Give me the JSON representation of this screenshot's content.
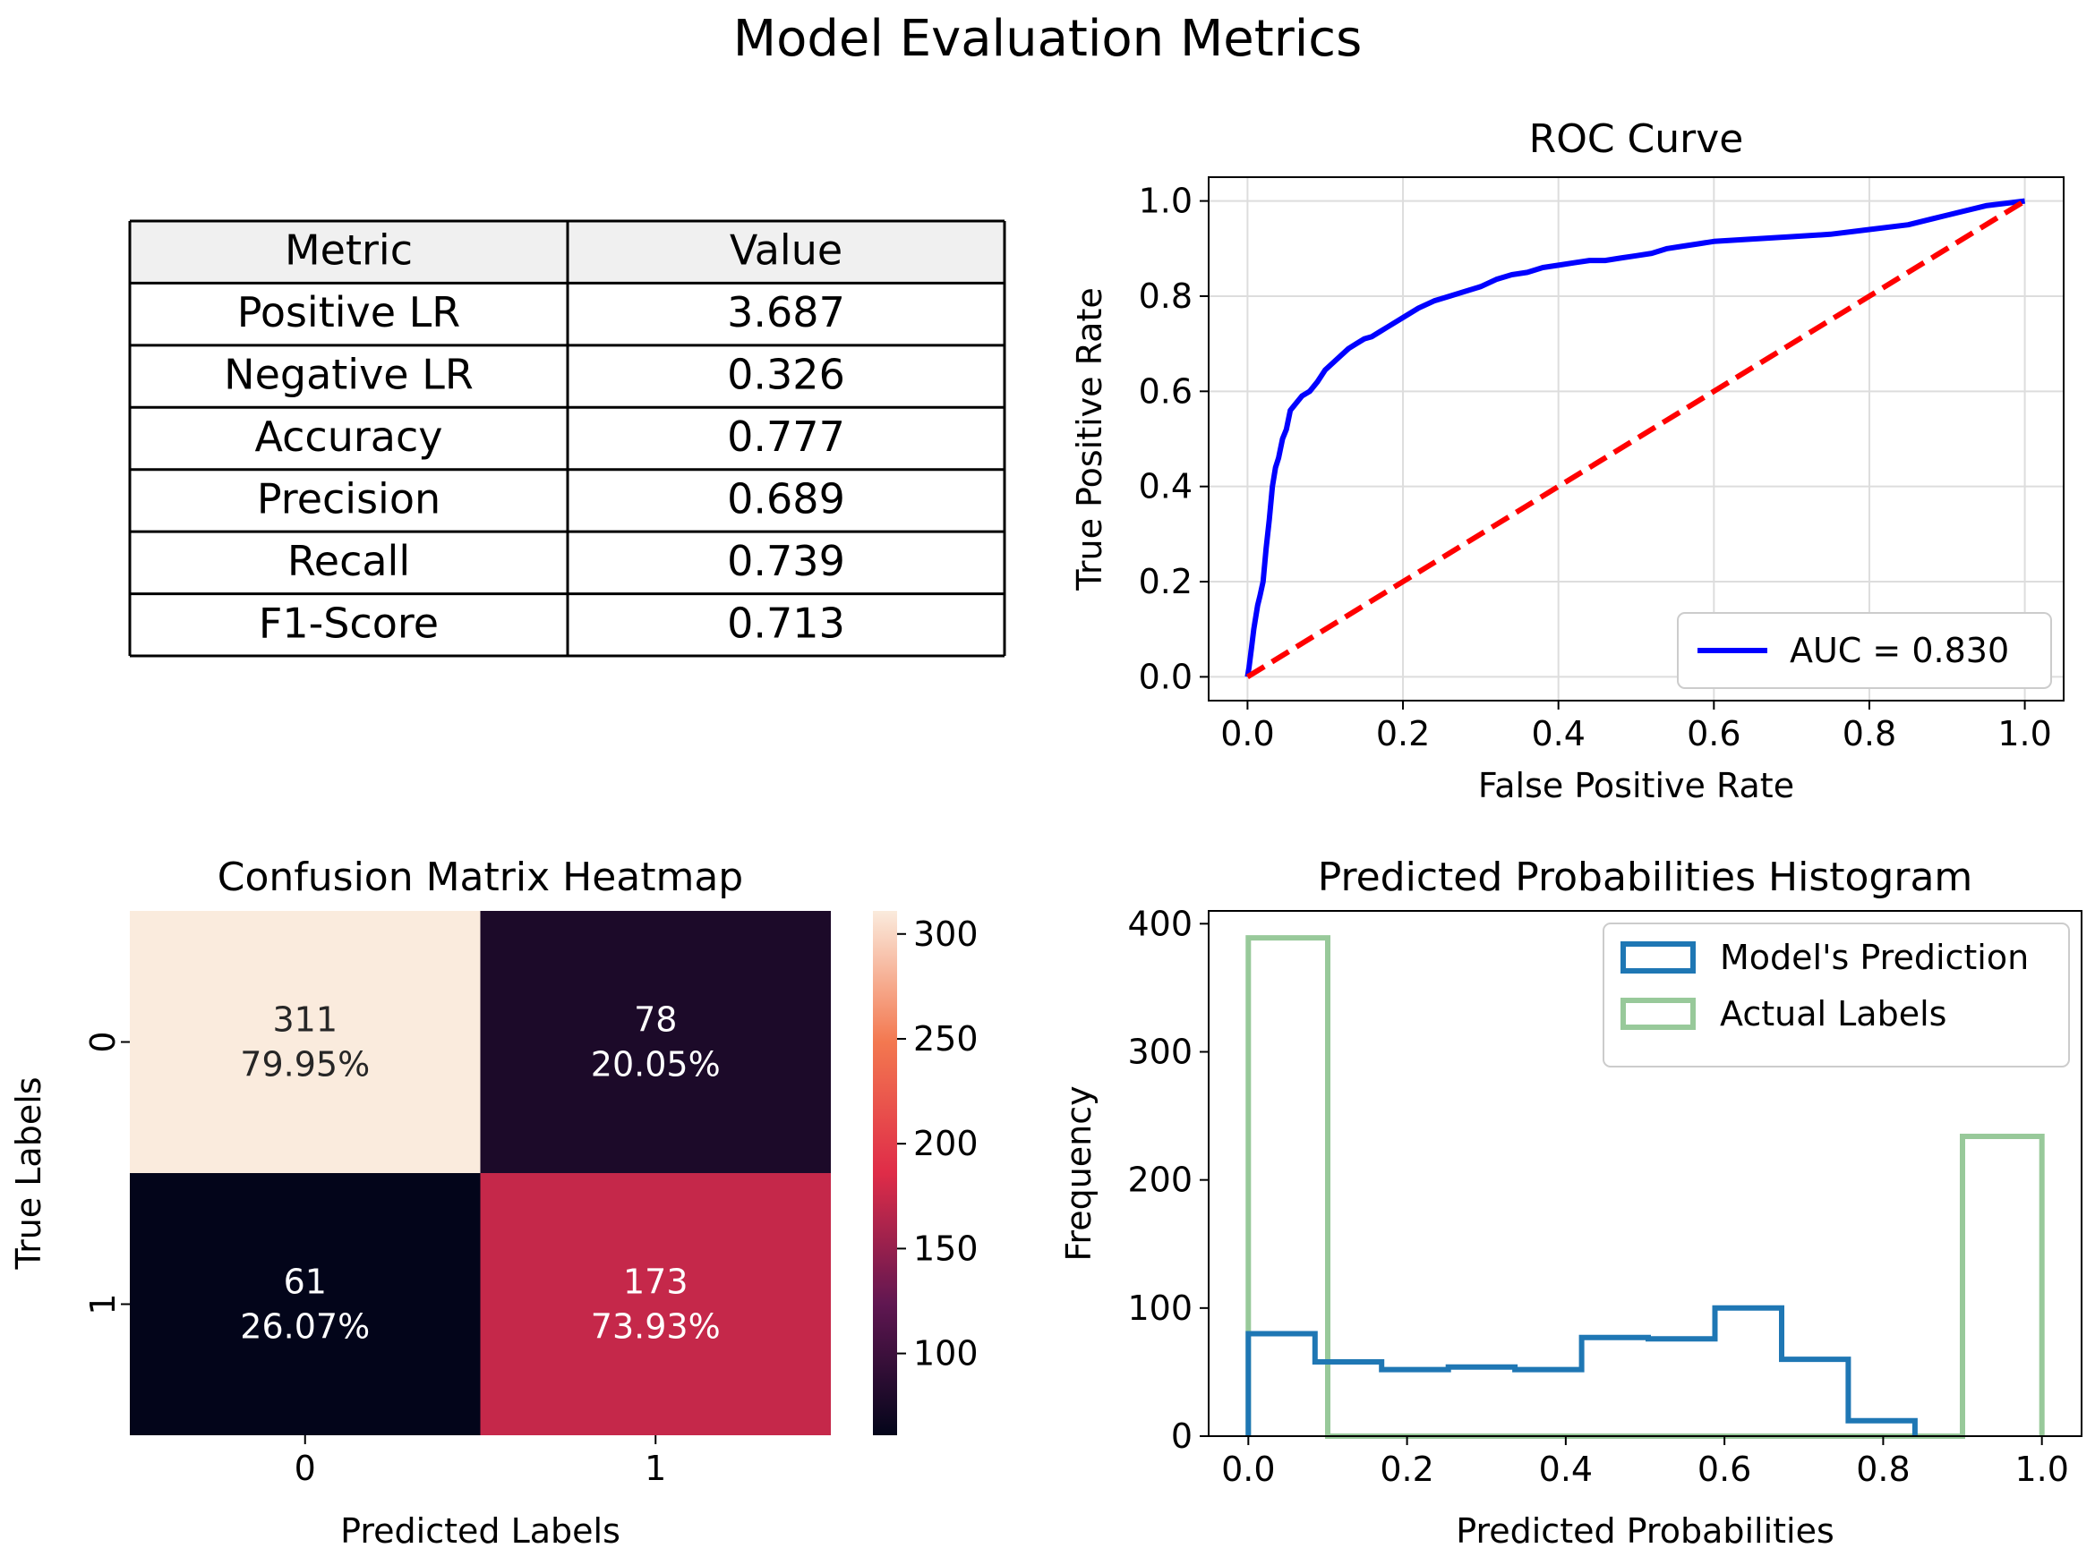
{
  "suptitle": "Model Evaluation Metrics",
  "chart_data": [
    {
      "type": "table",
      "columns": [
        "Metric",
        "Value"
      ],
      "rows": [
        [
          "Positive LR",
          "3.687"
        ],
        [
          "Negative LR",
          "0.326"
        ],
        [
          "Accuracy",
          "0.777"
        ],
        [
          "Precision",
          "0.689"
        ],
        [
          "Recall",
          "0.739"
        ],
        [
          "F1-Score",
          "0.713"
        ]
      ],
      "colors": {
        "header_bg": "#f0f0f0",
        "border": "#000000"
      }
    },
    {
      "type": "line",
      "title": "ROC Curve",
      "xlabel": "False Positive Rate",
      "ylabel": "True Positive Rate",
      "xlim": [
        -0.05,
        1.05
      ],
      "ylim": [
        -0.05,
        1.05
      ],
      "xticks": [
        "0.0",
        "0.2",
        "0.4",
        "0.6",
        "0.8",
        "1.0"
      ],
      "yticks": [
        "0.0",
        "0.2",
        "0.4",
        "0.6",
        "0.8",
        "1.0"
      ],
      "grid": true,
      "legend": "lower-right",
      "series": [
        {
          "name": "AUC = 0.830",
          "color": "#0000ff",
          "style": "solid",
          "x": [
            0.0,
            0.002,
            0.005,
            0.008,
            0.01,
            0.013,
            0.016,
            0.02,
            0.024,
            0.028,
            0.032,
            0.036,
            0.04,
            0.045,
            0.05,
            0.055,
            0.06,
            0.065,
            0.07,
            0.08,
            0.09,
            0.1,
            0.11,
            0.12,
            0.13,
            0.14,
            0.15,
            0.16,
            0.17,
            0.18,
            0.2,
            0.22,
            0.24,
            0.26,
            0.28,
            0.3,
            0.32,
            0.34,
            0.36,
            0.38,
            0.4,
            0.42,
            0.44,
            0.46,
            0.48,
            0.5,
            0.52,
            0.54,
            0.56,
            0.58,
            0.6,
            0.65,
            0.7,
            0.75,
            0.8,
            0.85,
            0.9,
            0.95,
            1.0
          ],
          "y": [
            0.0,
            0.02,
            0.06,
            0.1,
            0.12,
            0.15,
            0.17,
            0.2,
            0.27,
            0.33,
            0.4,
            0.44,
            0.46,
            0.5,
            0.52,
            0.56,
            0.57,
            0.58,
            0.59,
            0.6,
            0.62,
            0.645,
            0.66,
            0.675,
            0.69,
            0.7,
            0.71,
            0.715,
            0.725,
            0.735,
            0.755,
            0.775,
            0.79,
            0.8,
            0.81,
            0.82,
            0.835,
            0.845,
            0.85,
            0.86,
            0.865,
            0.87,
            0.875,
            0.875,
            0.88,
            0.885,
            0.89,
            0.9,
            0.905,
            0.91,
            0.915,
            0.92,
            0.925,
            0.93,
            0.94,
            0.95,
            0.97,
            0.99,
            1.0
          ]
        },
        {
          "name": "",
          "color": "#ff0000",
          "style": "dashed",
          "x": [
            0,
            1
          ],
          "y": [
            0,
            1
          ]
        }
      ]
    },
    {
      "type": "heatmap",
      "title": "Confusion Matrix Heatmap",
      "xlabel": "Predicted Labels",
      "ylabel": "True Labels",
      "x_categories": [
        "0",
        "1"
      ],
      "y_categories": [
        "0",
        "1"
      ],
      "values": [
        [
          311,
          78
        ],
        [
          61,
          173
        ]
      ],
      "cell_labels": [
        [
          "311\n79.95%",
          "78\n20.05%"
        ],
        [
          "61\n26.07%",
          "173\n73.93%"
        ]
      ],
      "colorbar": {
        "min": 61,
        "max": 311,
        "ticks": [
          "100",
          "150",
          "200",
          "250",
          "300"
        ]
      },
      "colors": {
        "low": "#03051a",
        "high": "#faebdd"
      }
    },
    {
      "type": "histogram",
      "title": "Predicted Probabilities Histogram",
      "xlabel": "Predicted Probabilities",
      "ylabel": "Frequency",
      "xlim": [
        -0.05,
        1.05
      ],
      "ylim": [
        0,
        410
      ],
      "xticks": [
        "0.0",
        "0.2",
        "0.4",
        "0.6",
        "0.8",
        "1.0"
      ],
      "yticks": [
        "0",
        "100",
        "200",
        "300",
        "400"
      ],
      "legend": "top-right",
      "series": [
        {
          "name": "Model's Prediction",
          "color": "#1f77b4",
          "bin_edges": [
            0.0,
            0.084,
            0.168,
            0.252,
            0.336,
            0.42,
            0.504,
            0.588,
            0.672,
            0.756,
            0.84
          ],
          "counts": [
            80,
            58,
            52,
            54,
            52,
            77,
            76,
            100,
            60,
            12
          ]
        },
        {
          "name": "Actual Labels",
          "color": "#98c99a",
          "bin_edges": [
            0.0,
            0.1,
            0.2,
            0.3,
            0.4,
            0.5,
            0.6,
            0.7,
            0.8,
            0.9,
            1.0
          ],
          "counts": [
            389,
            0,
            0,
            0,
            0,
            0,
            0,
            0,
            0,
            234
          ]
        }
      ]
    }
  ]
}
